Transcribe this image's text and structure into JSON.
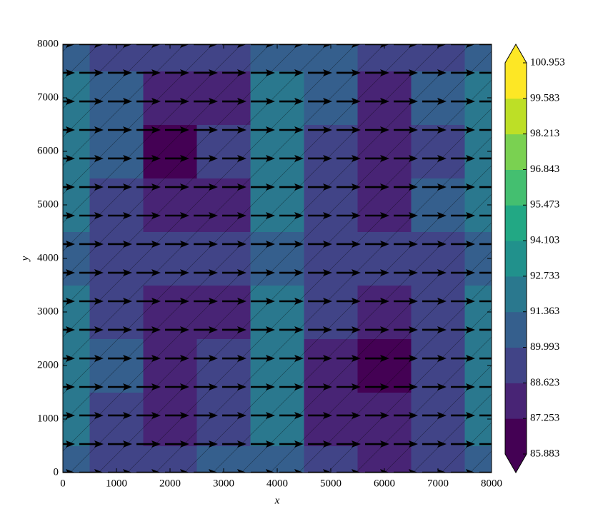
{
  "chart_data": {
    "type": "contour",
    "xlabel": "x",
    "ylabel": "y",
    "xlim": [
      0,
      8000
    ],
    "ylim": [
      0,
      8000
    ],
    "xticks": [
      0,
      1000,
      2000,
      3000,
      4000,
      5000,
      6000,
      7000,
      8000
    ],
    "yticks": [
      0,
      1000,
      2000,
      3000,
      4000,
      5000,
      6000,
      7000,
      8000
    ],
    "x": [
      0,
      1000,
      2000,
      3000,
      4000,
      5000,
      6000,
      7000,
      8000
    ],
    "y": [
      0,
      1000,
      2000,
      3000,
      4000,
      5000,
      6000,
      7000,
      8000
    ],
    "z": [
      [
        90.5,
        89.8,
        89.5,
        90.0,
        90.0,
        89.0,
        88.5,
        89.5,
        90.5
      ],
      [
        91.8,
        89.8,
        88.0,
        89.5,
        91.5,
        88.2,
        87.5,
        89.5,
        91.8
      ],
      [
        92.2,
        90.0,
        87.3,
        88.8,
        92.3,
        88.5,
        86.5,
        89.5,
        92.0
      ],
      [
        91.8,
        89.8,
        88.0,
        88.6,
        91.8,
        89.0,
        87.8,
        89.8,
        91.5
      ],
      [
        90.5,
        89.5,
        89.0,
        89.2,
        90.0,
        89.5,
        89.0,
        89.5,
        90.5
      ],
      [
        91.8,
        89.8,
        87.6,
        88.2,
        91.5,
        89.8,
        88.0,
        90.0,
        91.8
      ],
      [
        92.2,
        90.0,
        86.5,
        89.5,
        92.2,
        89.8,
        87.4,
        89.8,
        92.2
      ],
      [
        91.5,
        90.0,
        88.3,
        88.5,
        92.0,
        90.5,
        88.5,
        90.0,
        91.5
      ],
      [
        90.5,
        89.5,
        89.3,
        89.5,
        90.5,
        90.8,
        89.5,
        89.5,
        91.0
      ]
    ],
    "levels": [
      85.883,
      87.253,
      88.623,
      89.993,
      91.363,
      92.733,
      94.103,
      95.473,
      96.843,
      98.213,
      99.583,
      100.953
    ],
    "colors": [
      "#440154",
      "#482475",
      "#414487",
      "#355f8d",
      "#2a788e",
      "#21918c",
      "#22a884",
      "#44bf70",
      "#7ad151",
      "#bddf26",
      "#fde725"
    ],
    "under_color": "#440154",
    "over_color": "#fde725",
    "hatch": true,
    "quiver": {
      "x": [
        0,
        533,
        1067,
        1600,
        2133,
        2667,
        3200,
        3733,
        4267,
        4800,
        5333,
        5867,
        6400,
        6933,
        7467,
        8000
      ],
      "y": [
        0,
        533,
        1067,
        1600,
        2133,
        2667,
        3200,
        3733,
        4267,
        4800,
        5333,
        5867,
        6400,
        6933,
        7467,
        8000
      ],
      "u": 1,
      "v": 0,
      "color": "#000000"
    }
  }
}
